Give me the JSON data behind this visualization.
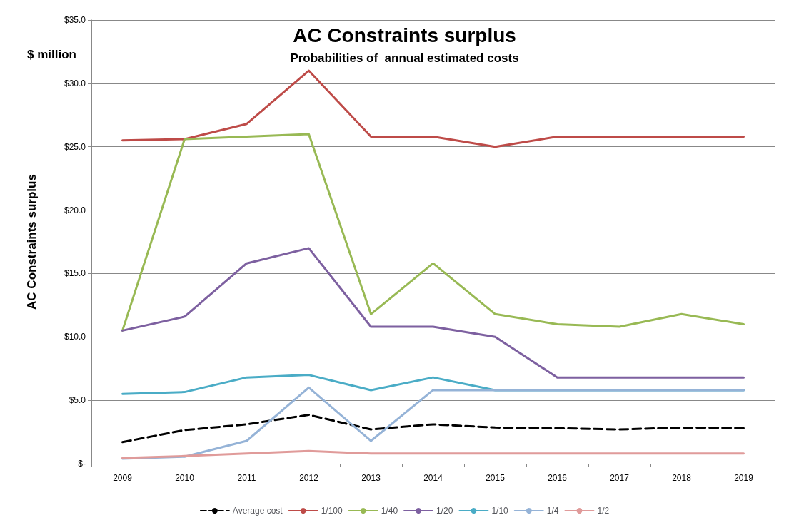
{
  "chart_data": {
    "type": "line",
    "title": "AC Constraints surplus",
    "subtitle": "Probabilities of  annual estimated costs",
    "ylabel": "AC Constraints surplus",
    "annotations": [
      "$ million"
    ],
    "categories": [
      "2009",
      "2010",
      "2011",
      "2012",
      "2013",
      "2014",
      "2015",
      "2016",
      "2017",
      "2018",
      "2019"
    ],
    "series": [
      {
        "name": "Average cost",
        "color": "#000000",
        "line_style": "dashed",
        "values": [
          1.7,
          2.65,
          3.1,
          3.85,
          2.7,
          3.1,
          2.85,
          2.8,
          2.7,
          2.85,
          2.8
        ]
      },
      {
        "name": "1/100",
        "color": "#be4b48",
        "values": [
          25.5,
          25.6,
          26.8,
          31.0,
          25.8,
          25.8,
          25.0,
          25.8,
          25.8,
          25.8,
          25.8
        ]
      },
      {
        "name": "1/40",
        "color": "#98b954",
        "values": [
          10.5,
          25.6,
          25.8,
          26.0,
          11.8,
          15.8,
          11.8,
          11.0,
          10.8,
          11.8,
          11.0
        ]
      },
      {
        "name": "1/20",
        "color": "#7d60a0",
        "values": [
          10.5,
          11.6,
          15.8,
          17.0,
          10.8,
          10.8,
          10.0,
          6.8,
          6.8,
          6.8,
          6.8
        ]
      },
      {
        "name": "1/10",
        "color": "#4aacc6",
        "values": [
          5.5,
          5.65,
          6.8,
          7.0,
          5.8,
          6.8,
          5.8,
          5.8,
          5.8,
          5.8,
          5.8
        ]
      },
      {
        "name": "1/4",
        "color": "#95b3d7",
        "values": [
          0.4,
          0.55,
          1.8,
          6.0,
          1.8,
          5.8,
          5.8,
          5.8,
          5.8,
          5.8,
          5.8
        ]
      },
      {
        "name": "1/2",
        "color": "#e09b9a",
        "values": [
          0.45,
          0.6,
          0.8,
          1.0,
          0.8,
          0.8,
          0.8,
          0.8,
          0.8,
          0.8,
          0.8
        ]
      }
    ],
    "ylim": [
      0,
      35
    ],
    "yticks": [
      {
        "value": 0,
        "label": "$-"
      },
      {
        "value": 5,
        "label": "$5.0"
      },
      {
        "value": 10,
        "label": "$10.0"
      },
      {
        "value": 15,
        "label": "$15.0"
      },
      {
        "value": 20,
        "label": "$20.0"
      },
      {
        "value": 25,
        "label": "$25.0"
      },
      {
        "value": 30,
        "label": "$30.0"
      },
      {
        "value": 35,
        "label": "$35.0"
      }
    ],
    "grid": "y",
    "legend": "bottom",
    "marker": "none",
    "line_style": "solid"
  }
}
